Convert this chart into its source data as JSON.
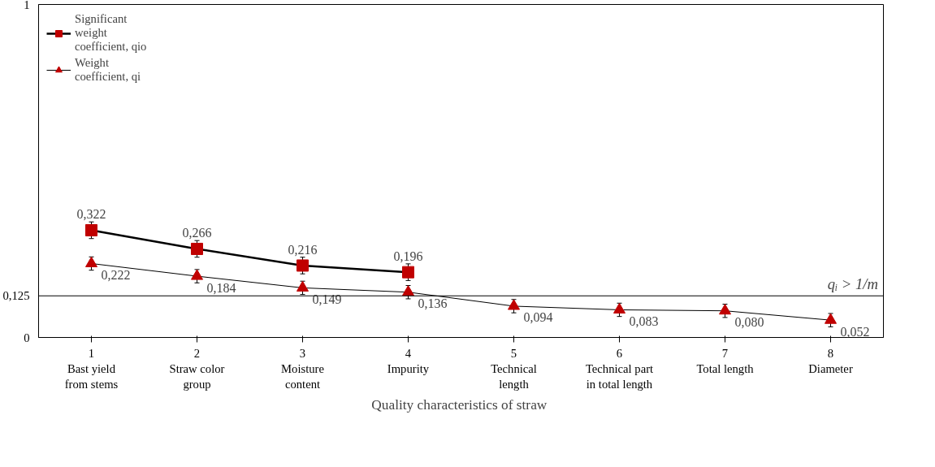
{
  "chart_data": {
    "type": "line",
    "xlabel": "Quality characteristics of  straw",
    "categories": [
      "1\nBast yield\nfrom stems",
      "2\nStraw color\ngroup",
      "3\nMoisture\ncontent",
      "4\nImpurity",
      "5\nTechnical\nlength",
      "6\nTechnical part\nin total length",
      "7\nTotal length",
      "8\nDiameter"
    ],
    "series": [
      {
        "name": "Significant\nweight\ncoefficient, qio",
        "color": "#c00000",
        "marker": "square",
        "values": [
          0.322,
          0.266,
          0.216,
          0.196,
          null,
          null,
          null,
          null
        ],
        "value_labels": [
          "0,322",
          "0,266",
          "0,216",
          "0,196",
          null,
          null,
          null,
          null
        ],
        "errors": [
          0.025,
          0.025,
          0.025,
          0.025,
          null,
          null,
          null,
          null
        ]
      },
      {
        "name": "Weight\ncoefficient, qi",
        "color": "#c00000",
        "marker": "triangle",
        "values": [
          0.222,
          0.184,
          0.149,
          0.136,
          0.094,
          0.083,
          0.08,
          0.052
        ],
        "value_labels": [
          "0,222",
          "0,184",
          "0,149",
          "0,136",
          "0,094",
          "0,083",
          "0,080",
          "0,052"
        ],
        "errors": [
          0.02,
          0.02,
          0.02,
          0.02,
          0.02,
          0.02,
          0.02,
          0.02
        ]
      }
    ],
    "ylim": [
      0,
      1
    ],
    "yticks": [
      0,
      {
        "value": 0.125,
        "label": "0,125"
      },
      1
    ],
    "ref_lines": [
      {
        "axis": "y",
        "value": 0.125,
        "label": "qᵢ > 1/m"
      }
    ],
    "grid": false,
    "legend": "top left"
  }
}
